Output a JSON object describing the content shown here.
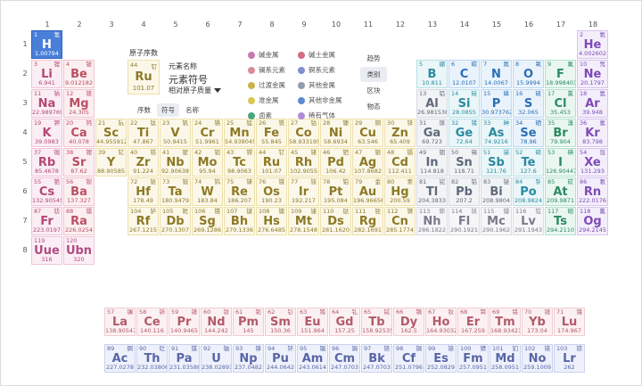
{
  "groups": [
    "1",
    "2",
    "3",
    "4",
    "5",
    "6",
    "7",
    "8",
    "9",
    "10",
    "11",
    "12",
    "13",
    "14",
    "15",
    "16",
    "17",
    "18"
  ],
  "periods": [
    "1",
    "2",
    "3",
    "4",
    "5",
    "6",
    "7",
    "8"
  ],
  "legend": {
    "title": "原子序数",
    "example": {
      "num": "44",
      "cn": "钌",
      "sym": "Ru",
      "mass": "101.07"
    },
    "name_label": "元素名称",
    "symbol_label": "元素符号",
    "mass_label": "相对原子质量",
    "buttons": [
      {
        "label": "序数",
        "active": false
      },
      {
        "label": "符号",
        "active": true
      },
      {
        "label": "名称",
        "active": false
      }
    ]
  },
  "categories": [
    {
      "label": "碱金属",
      "color": "#c879b0"
    },
    {
      "label": "碱土金属",
      "color": "#d16d82"
    },
    {
      "label": "镧系元素",
      "color": "#d98d98"
    },
    {
      "label": "锕系元素",
      "color": "#7f8fd1"
    },
    {
      "label": "过渡金属",
      "color": "#c9b34a"
    },
    {
      "label": "其他金属",
      "color": "#8f9cab"
    },
    {
      "label": "准金属",
      "color": "#d9c84f"
    },
    {
      "label": "其他非金属",
      "color": "#5a8bd0"
    },
    {
      "label": "卤素",
      "color": "#4aa77d"
    },
    {
      "label": "稀有气体",
      "color": "#b18ad9"
    }
  ],
  "side_buttons": [
    {
      "label": "趋势",
      "active": false
    },
    {
      "label": "类别",
      "active": true
    },
    {
      "label": "区块",
      "active": false
    },
    {
      "label": "物态",
      "active": false
    }
  ],
  "elements": [
    {
      "n": "1",
      "cn": "氢",
      "s": "H",
      "m": "1.00794",
      "g": 1,
      "p": 1,
      "c": "nonmetal",
      "sel": true
    },
    {
      "n": "2",
      "cn": "氦",
      "s": "He",
      "m": "4.002602",
      "g": 18,
      "p": 1,
      "c": "noble"
    },
    {
      "n": "3",
      "cn": "锂",
      "s": "Li",
      "m": "6.941",
      "g": 1,
      "p": 2,
      "c": "alkali"
    },
    {
      "n": "4",
      "cn": "铍",
      "s": "Be",
      "m": "9.012182",
      "g": 2,
      "p": 2,
      "c": "alkaline"
    },
    {
      "n": "5",
      "cn": "硼",
      "s": "B",
      "m": "10.811",
      "g": 13,
      "p": 2,
      "c": "metalloid"
    },
    {
      "n": "6",
      "cn": "碳",
      "s": "C",
      "m": "12.0107",
      "g": 14,
      "p": 2,
      "c": "nonmetal"
    },
    {
      "n": "7",
      "cn": "氮",
      "s": "N",
      "m": "14.0067",
      "g": 15,
      "p": 2,
      "c": "nonmetal"
    },
    {
      "n": "8",
      "cn": "氧",
      "s": "O",
      "m": "15.9994",
      "g": 16,
      "p": 2,
      "c": "nonmetal"
    },
    {
      "n": "9",
      "cn": "氟",
      "s": "F",
      "m": "18.998403",
      "g": 17,
      "p": 2,
      "c": "halogen"
    },
    {
      "n": "10",
      "cn": "氖",
      "s": "Ne",
      "m": "20.1797",
      "g": 18,
      "p": 2,
      "c": "noble"
    },
    {
      "n": "11",
      "cn": "钠",
      "s": "Na",
      "m": "22.989769",
      "g": 1,
      "p": 3,
      "c": "alkali"
    },
    {
      "n": "12",
      "cn": "镁",
      "s": "Mg",
      "m": "24.305",
      "g": 2,
      "p": 3,
      "c": "alkaline"
    },
    {
      "n": "13",
      "cn": "铝",
      "s": "Al",
      "m": "26.981538",
      "g": 13,
      "p": 3,
      "c": "posttrans"
    },
    {
      "n": "14",
      "cn": "硅",
      "s": "Si",
      "m": "28.0855",
      "g": 14,
      "p": 3,
      "c": "metalloid"
    },
    {
      "n": "15",
      "cn": "磷",
      "s": "P",
      "m": "30.973762",
      "g": 15,
      "p": 3,
      "c": "nonmetal"
    },
    {
      "n": "16",
      "cn": "硫",
      "s": "S",
      "m": "32.065",
      "g": 16,
      "p": 3,
      "c": "nonmetal"
    },
    {
      "n": "17",
      "cn": "氯",
      "s": "Cl",
      "m": "35.453",
      "g": 17,
      "p": 3,
      "c": "halogen"
    },
    {
      "n": "18",
      "cn": "氩",
      "s": "Ar",
      "m": "39.948",
      "g": 18,
      "p": 3,
      "c": "noble"
    },
    {
      "n": "19",
      "cn": "钾",
      "s": "K",
      "m": "39.0983",
      "g": 1,
      "p": 4,
      "c": "alkali"
    },
    {
      "n": "20",
      "cn": "钙",
      "s": "Ca",
      "m": "40.078",
      "g": 2,
      "p": 4,
      "c": "alkaline"
    },
    {
      "n": "21",
      "cn": "钪",
      "s": "Sc",
      "m": "44.955912",
      "g": 3,
      "p": 4,
      "c": "transition"
    },
    {
      "n": "22",
      "cn": "钛",
      "s": "Ti",
      "m": "47.867",
      "g": 4,
      "p": 4,
      "c": "transition"
    },
    {
      "n": "23",
      "cn": "钒",
      "s": "V",
      "m": "50.9415",
      "g": 5,
      "p": 4,
      "c": "transition"
    },
    {
      "n": "24",
      "cn": "铬",
      "s": "Cr",
      "m": "51.9961",
      "g": 6,
      "p": 4,
      "c": "transition"
    },
    {
      "n": "25",
      "cn": "锰",
      "s": "Mn",
      "m": "54.938045",
      "g": 7,
      "p": 4,
      "c": "transition"
    },
    {
      "n": "26",
      "cn": "铁",
      "s": "Fe",
      "m": "55.845",
      "g": 8,
      "p": 4,
      "c": "transition"
    },
    {
      "n": "27",
      "cn": "钴",
      "s": "Co",
      "m": "58.933195",
      "g": 9,
      "p": 4,
      "c": "transition"
    },
    {
      "n": "28",
      "cn": "镍",
      "s": "Ni",
      "m": "58.6934",
      "g": 10,
      "p": 4,
      "c": "transition"
    },
    {
      "n": "29",
      "cn": "铜",
      "s": "Cu",
      "m": "63.546",
      "g": 11,
      "p": 4,
      "c": "transition"
    },
    {
      "n": "30",
      "cn": "锌",
      "s": "Zn",
      "m": "65.409",
      "g": 12,
      "p": 4,
      "c": "transition"
    },
    {
      "n": "31",
      "cn": "镓",
      "s": "Ga",
      "m": "69.723",
      "g": 13,
      "p": 4,
      "c": "posttrans"
    },
    {
      "n": "32",
      "cn": "锗",
      "s": "Ge",
      "m": "72.64",
      "g": 14,
      "p": 4,
      "c": "metalloid"
    },
    {
      "n": "33",
      "cn": "砷",
      "s": "As",
      "m": "74.9216",
      "g": 15,
      "p": 4,
      "c": "metalloid"
    },
    {
      "n": "34",
      "cn": "硒",
      "s": "Se",
      "m": "78.96",
      "g": 16,
      "p": 4,
      "c": "nonmetal"
    },
    {
      "n": "35",
      "cn": "溴",
      "s": "Br",
      "m": "79.904",
      "g": 17,
      "p": 4,
      "c": "halogen"
    },
    {
      "n": "36",
      "cn": "氪",
      "s": "Kr",
      "m": "83.798",
      "g": 18,
      "p": 4,
      "c": "noble"
    },
    {
      "n": "37",
      "cn": "铷",
      "s": "Rb",
      "m": "85.4678",
      "g": 1,
      "p": 5,
      "c": "alkali"
    },
    {
      "n": "38",
      "cn": "锶",
      "s": "Sr",
      "m": "87.62",
      "g": 2,
      "p": 5,
      "c": "alkaline"
    },
    {
      "n": "39",
      "cn": "钇",
      "s": "Y",
      "m": "88.90585",
      "g": 3,
      "p": 5,
      "c": "transition"
    },
    {
      "n": "40",
      "cn": "锆",
      "s": "Zr",
      "m": "91.224",
      "g": 4,
      "p": 5,
      "c": "transition"
    },
    {
      "n": "41",
      "cn": "铌",
      "s": "Nb",
      "m": "92.90638",
      "g": 5,
      "p": 5,
      "c": "transition"
    },
    {
      "n": "42",
      "cn": "钼",
      "s": "Mo",
      "m": "95.94",
      "g": 6,
      "p": 5,
      "c": "transition"
    },
    {
      "n": "43",
      "cn": "锝",
      "s": "Tc",
      "m": "98.9063",
      "g": 7,
      "p": 5,
      "c": "transition"
    },
    {
      "n": "44",
      "cn": "钌",
      "s": "Ru",
      "m": "101.07",
      "g": 8,
      "p": 5,
      "c": "transition"
    },
    {
      "n": "45",
      "cn": "铑",
      "s": "Rh",
      "m": "102.9055",
      "g": 9,
      "p": 5,
      "c": "transition"
    },
    {
      "n": "46",
      "cn": "钯",
      "s": "Pd",
      "m": "106.42",
      "g": 10,
      "p": 5,
      "c": "transition"
    },
    {
      "n": "47",
      "cn": "银",
      "s": "Ag",
      "m": "107.8682",
      "g": 11,
      "p": 5,
      "c": "transition"
    },
    {
      "n": "48",
      "cn": "镉",
      "s": "Cd",
      "m": "112.411",
      "g": 12,
      "p": 5,
      "c": "transition"
    },
    {
      "n": "49",
      "cn": "铟",
      "s": "In",
      "m": "114.818",
      "g": 13,
      "p": 5,
      "c": "posttrans"
    },
    {
      "n": "50",
      "cn": "锡",
      "s": "Sn",
      "m": "118.71",
      "g": 14,
      "p": 5,
      "c": "posttrans"
    },
    {
      "n": "51",
      "cn": "锑",
      "s": "Sb",
      "m": "121.76",
      "g": 15,
      "p": 5,
      "c": "metalloid"
    },
    {
      "n": "52",
      "cn": "碲",
      "s": "Te",
      "m": "127.6",
      "g": 16,
      "p": 5,
      "c": "metalloid"
    },
    {
      "n": "53",
      "cn": "碘",
      "s": "I",
      "m": "126.90447",
      "g": 17,
      "p": 5,
      "c": "halogen"
    },
    {
      "n": "54",
      "cn": "氙",
      "s": "Xe",
      "m": "131.293",
      "g": 18,
      "p": 5,
      "c": "noble"
    },
    {
      "n": "55",
      "cn": "铯",
      "s": "Cs",
      "m": "132.905451",
      "g": 1,
      "p": 6,
      "c": "alkali"
    },
    {
      "n": "56",
      "cn": "钡",
      "s": "Ba",
      "m": "137.327",
      "g": 2,
      "p": 6,
      "c": "alkaline"
    },
    {
      "n": "72",
      "cn": "铪",
      "s": "Hf",
      "m": "178.49",
      "g": 4,
      "p": 6,
      "c": "transition"
    },
    {
      "n": "73",
      "cn": "钽",
      "s": "Ta",
      "m": "180.9479",
      "g": 5,
      "p": 6,
      "c": "transition"
    },
    {
      "n": "74",
      "cn": "钨",
      "s": "W",
      "m": "183.84",
      "g": 6,
      "p": 6,
      "c": "transition"
    },
    {
      "n": "75",
      "cn": "铼",
      "s": "Re",
      "m": "186.207",
      "g": 7,
      "p": 6,
      "c": "transition"
    },
    {
      "n": "76",
      "cn": "锇",
      "s": "Os",
      "m": "190.23",
      "g": 8,
      "p": 6,
      "c": "transition"
    },
    {
      "n": "77",
      "cn": "铱",
      "s": "Ir",
      "m": "192.217",
      "g": 9,
      "p": 6,
      "c": "transition"
    },
    {
      "n": "78",
      "cn": "铂",
      "s": "Pt",
      "m": "195.084",
      "g": 10,
      "p": 6,
      "c": "transition"
    },
    {
      "n": "79",
      "cn": "金",
      "s": "Au",
      "m": "196.966569",
      "g": 11,
      "p": 6,
      "c": "transition"
    },
    {
      "n": "80",
      "cn": "汞",
      "s": "Hg",
      "m": "200.59",
      "g": 12,
      "p": 6,
      "c": "transition"
    },
    {
      "n": "81",
      "cn": "铊",
      "s": "Tl",
      "m": "204.3833",
      "g": 13,
      "p": 6,
      "c": "posttrans"
    },
    {
      "n": "82",
      "cn": "铅",
      "s": "Pb",
      "m": "207.2",
      "g": 14,
      "p": 6,
      "c": "posttrans"
    },
    {
      "n": "83",
      "cn": "铋",
      "s": "Bi",
      "m": "208.9804",
      "g": 15,
      "p": 6,
      "c": "posttrans"
    },
    {
      "n": "84",
      "cn": "钋",
      "s": "Po",
      "m": "208.9824",
      "g": 16,
      "p": 6,
      "c": "metalloid"
    },
    {
      "n": "85",
      "cn": "砹",
      "s": "At",
      "m": "209.9871",
      "g": 17,
      "p": 6,
      "c": "halogen"
    },
    {
      "n": "86",
      "cn": "氡",
      "s": "Rn",
      "m": "222.0176",
      "g": 18,
      "p": 6,
      "c": "noble"
    },
    {
      "n": "87",
      "cn": "钫",
      "s": "Fr",
      "m": "223.0197",
      "g": 1,
      "p": 7,
      "c": "alkali"
    },
    {
      "n": "88",
      "cn": "镭",
      "s": "Ra",
      "m": "226.0254",
      "g": 2,
      "p": 7,
      "c": "alkaline"
    },
    {
      "n": "104",
      "cn": "𬬻",
      "s": "Rf",
      "m": "267.1215",
      "g": 4,
      "p": 7,
      "c": "transition"
    },
    {
      "n": "105",
      "cn": "𬭊",
      "s": "Db",
      "m": "270.1307",
      "g": 5,
      "p": 7,
      "c": "transition"
    },
    {
      "n": "106",
      "cn": "𬭳",
      "s": "Sg",
      "m": "269.1286",
      "g": 6,
      "p": 7,
      "c": "transition"
    },
    {
      "n": "107",
      "cn": "𬭛",
      "s": "Bh",
      "m": "270.1336",
      "g": 7,
      "p": 7,
      "c": "transition"
    },
    {
      "n": "108",
      "cn": "𬭶",
      "s": "Hs",
      "m": "276.6485",
      "g": 8,
      "p": 7,
      "c": "transition"
    },
    {
      "n": "109",
      "cn": "鿏",
      "s": "Mt",
      "m": "278.1548",
      "g": 9,
      "p": 7,
      "c": "transition"
    },
    {
      "n": "110",
      "cn": "𫟼",
      "s": "Ds",
      "m": "281.1620",
      "g": 10,
      "p": 7,
      "c": "transition"
    },
    {
      "n": "111",
      "cn": "𬬭",
      "s": "Rg",
      "m": "282.1691",
      "g": 11,
      "p": 7,
      "c": "transition"
    },
    {
      "n": "112",
      "cn": "鿔",
      "s": "Cn",
      "m": "285.1774",
      "g": 12,
      "p": 7,
      "c": "transition"
    },
    {
      "n": "113",
      "cn": "鿭",
      "s": "Nh",
      "m": "286.1822",
      "g": 13,
      "p": 7,
      "c": "unknown"
    },
    {
      "n": "114",
      "cn": "𫓧",
      "s": "Fl",
      "m": "290.1921",
      "g": 14,
      "p": 7,
      "c": "unknown"
    },
    {
      "n": "115",
      "cn": "镆",
      "s": "Mc",
      "m": "290.1962",
      "g": 15,
      "p": 7,
      "c": "unknown"
    },
    {
      "n": "116",
      "cn": "𫟷",
      "s": "Lv",
      "m": "291.1943",
      "g": 16,
      "p": 7,
      "c": "unknown"
    },
    {
      "n": "117",
      "cn": "鿬",
      "s": "Ts",
      "m": "294.2110",
      "g": 17,
      "p": 7,
      "c": "halogen"
    },
    {
      "n": "118",
      "cn": "鿫",
      "s": "Og",
      "m": "294.2145",
      "g": 18,
      "p": 7,
      "c": "noble"
    },
    {
      "n": "119",
      "cn": "",
      "s": "Uue",
      "m": "316",
      "g": 1,
      "p": 8,
      "c": "superheavy"
    },
    {
      "n": "120",
      "cn": "",
      "s": "Ubn",
      "m": "320",
      "g": 2,
      "p": 8,
      "c": "superheavy"
    }
  ],
  "lanthanides": [
    {
      "n": "57",
      "cn": "镧",
      "s": "La",
      "m": "138.90547"
    },
    {
      "n": "58",
      "cn": "铈",
      "s": "Ce",
      "m": "140.116"
    },
    {
      "n": "59",
      "cn": "镨",
      "s": "Pr",
      "m": "140.9465"
    },
    {
      "n": "60",
      "cn": "钕",
      "s": "Nd",
      "m": "144.242"
    },
    {
      "n": "61",
      "cn": "钷",
      "s": "Pm",
      "m": "145"
    },
    {
      "n": "62",
      "cn": "钐",
      "s": "Sm",
      "m": "150.36"
    },
    {
      "n": "63",
      "cn": "铕",
      "s": "Eu",
      "m": "151.964"
    },
    {
      "n": "64",
      "cn": "钆",
      "s": "Gd",
      "m": "157.25"
    },
    {
      "n": "65",
      "cn": "铽",
      "s": "Tb",
      "m": "158.92535"
    },
    {
      "n": "66",
      "cn": "镝",
      "s": "Dy",
      "m": "162.5"
    },
    {
      "n": "67",
      "cn": "钬",
      "s": "Ho",
      "m": "164.93032"
    },
    {
      "n": "68",
      "cn": "铒",
      "s": "Er",
      "m": "167.259"
    },
    {
      "n": "69",
      "cn": "铥",
      "s": "Tm",
      "m": "168.93421"
    },
    {
      "n": "70",
      "cn": "镱",
      "s": "Yb",
      "m": "173.04"
    },
    {
      "n": "71",
      "cn": "镥",
      "s": "Lu",
      "m": "174.967"
    }
  ],
  "actinides": [
    {
      "n": "89",
      "cn": "锕",
      "s": "Ac",
      "m": "227.0278"
    },
    {
      "n": "90",
      "cn": "钍",
      "s": "Th",
      "m": "232.03806"
    },
    {
      "n": "91",
      "cn": "镤",
      "s": "Pa",
      "m": "231.03588"
    },
    {
      "n": "92",
      "cn": "铀",
      "s": "U",
      "m": "238.02891"
    },
    {
      "n": "93",
      "cn": "镎",
      "s": "Np",
      "m": "237.0482"
    },
    {
      "n": "94",
      "cn": "钚",
      "s": "Pu",
      "m": "244.0642"
    },
    {
      "n": "95",
      "cn": "镅",
      "s": "Am",
      "m": "243.0614"
    },
    {
      "n": "96",
      "cn": "锔",
      "s": "Cm",
      "m": "247.0703"
    },
    {
      "n": "97",
      "cn": "锫",
      "s": "Bk",
      "m": "247.0703"
    },
    {
      "n": "98",
      "cn": "锎",
      "s": "Cf",
      "m": "251.0796"
    },
    {
      "n": "99",
      "cn": "锿",
      "s": "Es",
      "m": "252.0829"
    },
    {
      "n": "100",
      "cn": "镄",
      "s": "Fm",
      "m": "257.0951"
    },
    {
      "n": "101",
      "cn": "钔",
      "s": "Md",
      "m": "258.0951"
    },
    {
      "n": "102",
      "cn": "锘",
      "s": "No",
      "m": "259.1009"
    },
    {
      "n": "103",
      "cn": "铹",
      "s": "Lr",
      "m": "262"
    }
  ]
}
